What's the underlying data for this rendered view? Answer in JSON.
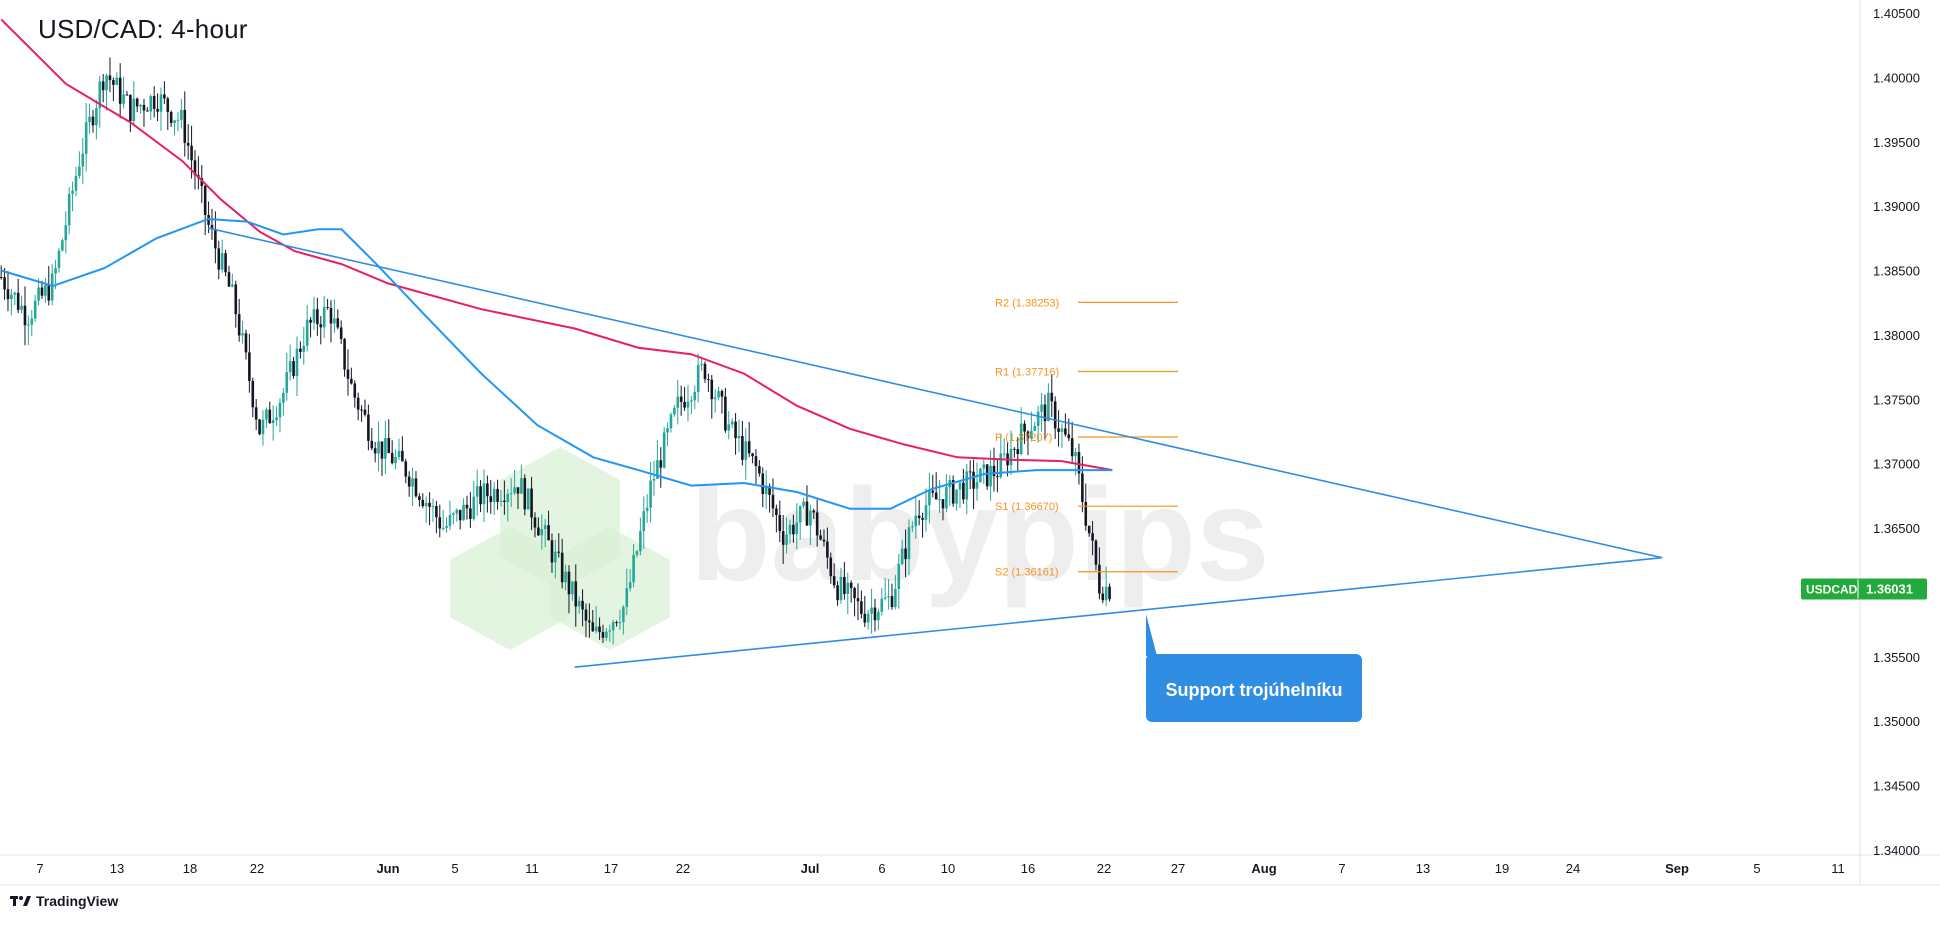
{
  "title": "USD/CAD: 4-hour",
  "footer": {
    "brand": "TradingView"
  },
  "watermark": "babypips",
  "colors": {
    "up": "#26a69a",
    "down": "#131722",
    "ma_fast": "#e91e63",
    "ma_slow": "#2196f3",
    "trend": "#2f8de4",
    "pivot": "#f7931e",
    "price_tag": "#22ab3c",
    "callout": "#2f8de4",
    "watermark_green": "#d9f0d5",
    "watermark_grey": "#ececec"
  },
  "chart_data": {
    "type": "candlestick",
    "symbol": "USDCAD",
    "last_price": "1.36031",
    "ylim": [
      1.34,
      1.405
    ],
    "y_ticks": [
      "1.40500",
      "1.40000",
      "1.39500",
      "1.39000",
      "1.38500",
      "1.38000",
      "1.37500",
      "1.37000",
      "1.36500",
      "1.36000",
      "1.35500",
      "1.35000",
      "1.34500",
      "1.34000"
    ],
    "x_ticks": [
      "7",
      "13",
      "18",
      "22",
      "Jun",
      "5",
      "11",
      "17",
      "22",
      "Jul",
      "6",
      "10",
      "16",
      "22",
      "27",
      "Aug",
      "7",
      "13",
      "19",
      "24",
      "Sep",
      "5",
      "11"
    ],
    "pivot_levels": [
      {
        "label": "R2 (1.38253)",
        "value": 1.38253
      },
      {
        "label": "R1 (1.37716)",
        "value": 1.37716
      },
      {
        "label": "P (1.37207)",
        "value": 1.37207
      },
      {
        "label": "S1 (1.36670)",
        "value": 1.3667
      },
      {
        "label": "S2 (1.36161)",
        "value": 1.36161
      }
    ],
    "trendlines": [
      {
        "name": "resistance",
        "from": [
          "May 20",
          1.3883
        ],
        "to": [
          "Aug 30",
          1.3627
        ]
      },
      {
        "name": "support",
        "from": [
          "Jun 14",
          1.3542
        ],
        "to": [
          "Aug 30",
          1.3627
        ]
      }
    ],
    "annotation": "Support trojúhelníku",
    "moving_averages": [
      {
        "color": "pink",
        "points": [
          [
            "May 4",
            1.4045
          ],
          [
            "May 9",
            1.3995
          ],
          [
            "May 14",
            1.3965
          ],
          [
            "May 18",
            1.3935
          ],
          [
            "May 21",
            1.3905
          ],
          [
            "May 24",
            1.388
          ],
          [
            "May 27",
            1.3865
          ],
          [
            "May 31",
            1.3855
          ],
          [
            "Jun 4",
            1.384
          ],
          [
            "Jun 9",
            1.382
          ],
          [
            "Jun 14",
            1.3805
          ],
          [
            "Jun 18",
            1.379
          ],
          [
            "Jun 22",
            1.3785
          ],
          [
            "Jun 26",
            1.377
          ],
          [
            "Jun 30",
            1.3745
          ],
          [
            "Jul 4",
            1.3727
          ],
          [
            "Jul 8",
            1.3715
          ],
          [
            "Jul 12",
            1.3705
          ],
          [
            "Jul 16",
            1.3703
          ],
          [
            "Jul 20",
            1.3702
          ],
          [
            "Jul 24",
            1.3695
          ]
        ]
      },
      {
        "color": "blue",
        "points": [
          [
            "May 4",
            1.385
          ],
          [
            "May 8",
            1.3838
          ],
          [
            "May 12",
            1.3852
          ],
          [
            "May 16",
            1.3875
          ],
          [
            "May 20",
            1.389
          ],
          [
            "May 23",
            1.3888
          ],
          [
            "May 26",
            1.3878
          ],
          [
            "May 29",
            1.3882
          ],
          [
            "May 31",
            1.3882
          ],
          [
            "Jun 3",
            1.3855
          ],
          [
            "Jun 6",
            1.3815
          ],
          [
            "Jun 9",
            1.377
          ],
          [
            "Jun 12",
            1.373
          ],
          [
            "Jun 15",
            1.3705
          ],
          [
            "Jun 18",
            1.3695
          ],
          [
            "Jun 22",
            1.3683
          ],
          [
            "Jun 26",
            1.3685
          ],
          [
            "Jun 30",
            1.3678
          ],
          [
            "Jul 4",
            1.3665
          ],
          [
            "Jul 7",
            1.3665
          ],
          [
            "Jul 10",
            1.368
          ],
          [
            "Jul 14",
            1.3692
          ],
          [
            "Jul 18",
            1.3695
          ],
          [
            "Jul 22",
            1.3695
          ],
          [
            "Jul 24",
            1.3695
          ]
        ]
      }
    ],
    "price_path": [
      [
        "May 4",
        1.3845
      ],
      [
        "May 6",
        1.3815
      ],
      [
        "May 8",
        1.384
      ],
      [
        "May 10",
        1.3935
      ],
      [
        "May 12",
        1.4005
      ],
      [
        "May 14",
        1.3975
      ],
      [
        "May 16",
        1.3985
      ],
      [
        "May 18",
        1.3965
      ],
      [
        "May 20",
        1.3885
      ],
      [
        "May 22",
        1.3825
      ],
      [
        "May 24",
        1.3725
      ],
      [
        "May 26",
        1.3755
      ],
      [
        "May 28",
        1.3805
      ],
      [
        "May 30",
        1.382
      ],
      [
        "Jun 1",
        1.3755
      ],
      [
        "Jun 3",
        1.3715
      ],
      [
        "Jun 5",
        1.3695
      ],
      [
        "Jun 7",
        1.365
      ],
      [
        "Jun 9",
        1.3675
      ],
      [
        "Jun 11",
        1.3685
      ],
      [
        "Jun 13",
        1.3625
      ],
      [
        "Jun 15",
        1.3565
      ],
      [
        "Jun 17",
        1.359
      ],
      [
        "Jun 19",
        1.3685
      ],
      [
        "Jun 21",
        1.3745
      ],
      [
        "Jun 23",
        1.3775
      ],
      [
        "Jun 25",
        1.3725
      ],
      [
        "Jun 27",
        1.3695
      ],
      [
        "Jun 29",
        1.3645
      ],
      [
        "Jul 1",
        1.3665
      ],
      [
        "Jul 3",
        1.3605
      ],
      [
        "Jul 5",
        1.3585
      ],
      [
        "Jul 7",
        1.3595
      ],
      [
        "Jul 9",
        1.3665
      ],
      [
        "Jul 11",
        1.3675
      ],
      [
        "Jul 13",
        1.3685
      ],
      [
        "Jul 15",
        1.3695
      ],
      [
        "Jul 17",
        1.3725
      ],
      [
        "Jul 19",
        1.3745
      ],
      [
        "Jul 21",
        1.3705
      ],
      [
        "Jul 22",
        1.3655
      ],
      [
        "Jul 23",
        1.3605
      ],
      [
        "Jul 24",
        1.3603
      ]
    ]
  }
}
